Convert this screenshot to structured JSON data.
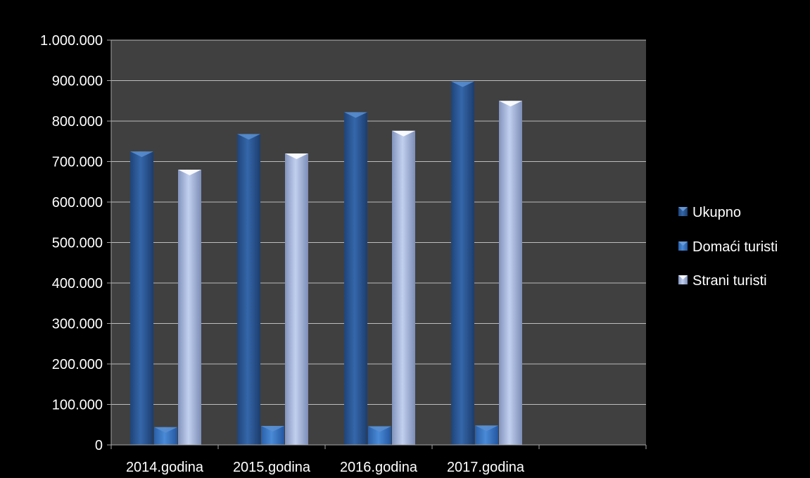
{
  "chart_data": {
    "type": "bar",
    "categories": [
      "2014.godina",
      "2015.godina",
      "2016.godina",
      "2017.godina"
    ],
    "series": [
      {
        "name": "Ukupno",
        "values": [
          725000,
          768000,
          822000,
          898000
        ],
        "color": "#2f5f9e"
      },
      {
        "name": "Domaći turisti",
        "values": [
          44000,
          47000,
          46000,
          48000
        ],
        "color": "#3b77c4"
      },
      {
        "name": "Strani turisti",
        "values": [
          680000,
          720000,
          776000,
          850000
        ],
        "color": "#b3c3e6"
      }
    ],
    "ylim": [
      0,
      1000000
    ],
    "yticks": [
      "0",
      "100.000",
      "200.000",
      "300.000",
      "400.000",
      "500.000",
      "600.000",
      "700.000",
      "800.000",
      "900.000",
      "1.000.000"
    ],
    "grid": true,
    "legend": "right",
    "title": "",
    "xlabel": "",
    "ylabel": ""
  },
  "colors": {
    "background": "#000000",
    "plot_area": "#404040",
    "gridline": "#bdbdbd",
    "axis": "#a6a6a6",
    "text": "#ffffff"
  }
}
